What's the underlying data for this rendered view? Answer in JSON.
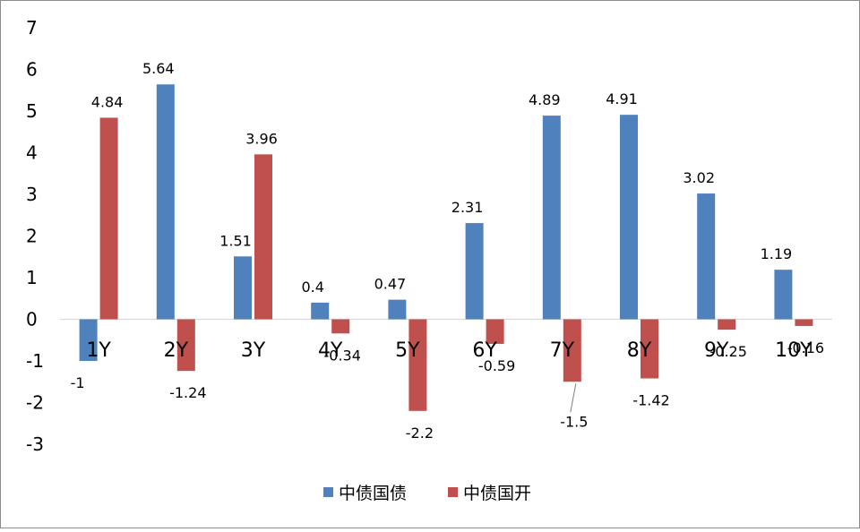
{
  "chart_data": {
    "type": "bar",
    "title": "",
    "xlabel": "",
    "ylabel": "",
    "ylim": [
      -3,
      7
    ],
    "yticks": [
      -3,
      -2,
      -1,
      0,
      1,
      2,
      3,
      4,
      5,
      6,
      7
    ],
    "grid": false,
    "legend_position": "bottom",
    "categories": [
      "1Y",
      "2Y",
      "3Y",
      "4Y",
      "5Y",
      "6Y",
      "7Y",
      "8Y",
      "9Y",
      "10Y"
    ],
    "series": [
      {
        "name": "中债国债",
        "color": "#4f81bd",
        "values": [
          -1,
          5.64,
          1.51,
          0.4,
          0.47,
          2.31,
          4.89,
          4.91,
          3.02,
          1.19
        ]
      },
      {
        "name": "中债国开",
        "color": "#c0504d",
        "values": [
          4.84,
          -1.24,
          3.96,
          -0.34,
          -2.2,
          -0.59,
          -1.5,
          -1.42,
          -0.25,
          -0.16
        ]
      }
    ]
  }
}
